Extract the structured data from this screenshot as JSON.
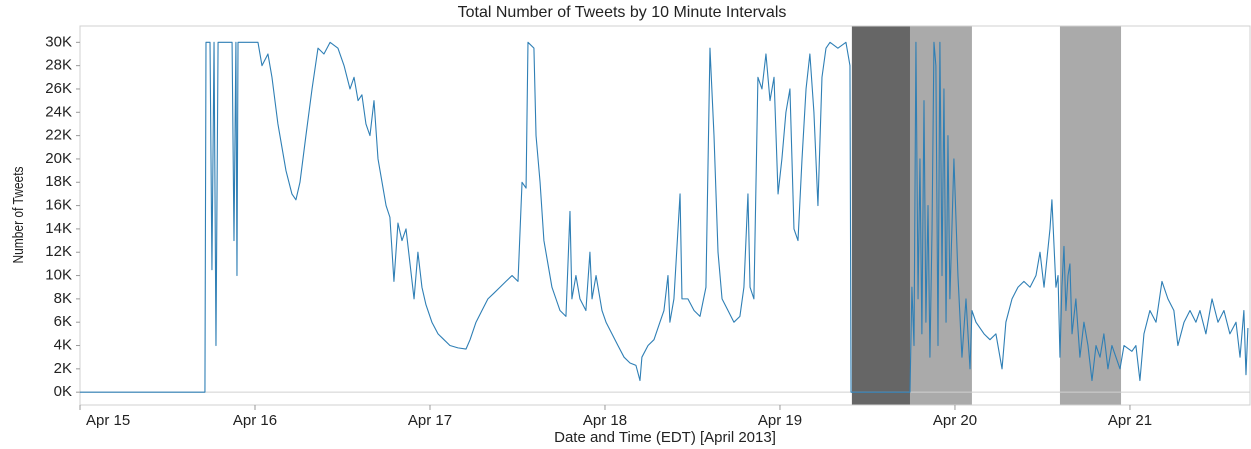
{
  "chart_data": {
    "type": "line",
    "title": "Total Number of Tweets by 10 Minute Intervals",
    "x_label": "Date and Time (EDT) [April 2013]",
    "y_label": "Number of Tweets",
    "color": "#2f7fb5",
    "grid": false,
    "xlim": [
      15,
      21.686
    ],
    "xticks": [
      {
        "value": 15,
        "label": "Apr 15"
      },
      {
        "value": 16,
        "label": "Apr 16"
      },
      {
        "value": 17,
        "label": "Apr 17"
      },
      {
        "value": 18,
        "label": "Apr 18"
      },
      {
        "value": 19,
        "label": "Apr 19"
      },
      {
        "value": 20,
        "label": "Apr 20"
      },
      {
        "value": 21,
        "label": "Apr 21"
      }
    ],
    "ylim": [
      -1100,
      31400
    ],
    "yticks": [
      {
        "value": 0,
        "label": "0K"
      },
      {
        "value": 2000,
        "label": "2K"
      },
      {
        "value": 4000,
        "label": "4K"
      },
      {
        "value": 6000,
        "label": "6K"
      },
      {
        "value": 8000,
        "label": "8K"
      },
      {
        "value": 10000,
        "label": "10K"
      },
      {
        "value": 12000,
        "label": "12K"
      },
      {
        "value": 14000,
        "label": "14K"
      },
      {
        "value": 16000,
        "label": "16K"
      },
      {
        "value": 18000,
        "label": "18K"
      },
      {
        "value": 20000,
        "label": "20K"
      },
      {
        "value": 22000,
        "label": "22K"
      },
      {
        "value": 24000,
        "label": "24K"
      },
      {
        "value": 26000,
        "label": "26K"
      },
      {
        "value": 28000,
        "label": "28K"
      },
      {
        "value": 30000,
        "label": "30K"
      }
    ],
    "shaded_regions": [
      {
        "start": 19.411,
        "end": 19.743,
        "color": "#666666"
      },
      {
        "start": 19.743,
        "end": 20.097,
        "color": "#aaaaaa"
      },
      {
        "start": 20.6,
        "end": 20.949,
        "color": "#aaaaaa"
      }
    ],
    "x": [
      15.0,
      15.714,
      15.72,
      15.743,
      15.754,
      15.766,
      15.777,
      15.789,
      15.869,
      15.88,
      15.891,
      15.897,
      15.903,
      16.017,
      16.04,
      16.074,
      16.097,
      16.131,
      16.154,
      16.177,
      16.211,
      16.234,
      16.257,
      16.291,
      16.326,
      16.36,
      16.394,
      16.429,
      16.474,
      16.509,
      16.543,
      16.566,
      16.589,
      16.611,
      16.634,
      16.657,
      16.68,
      16.703,
      16.726,
      16.749,
      16.771,
      16.794,
      16.817,
      16.84,
      16.863,
      16.886,
      16.909,
      16.931,
      16.954,
      16.977,
      17.011,
      17.046,
      17.08,
      17.114,
      17.16,
      17.206,
      17.229,
      17.263,
      17.297,
      17.331,
      17.366,
      17.4,
      17.434,
      17.469,
      17.503,
      17.526,
      17.549,
      17.56,
      17.594,
      17.606,
      17.629,
      17.651,
      17.674,
      17.697,
      17.72,
      17.743,
      17.777,
      17.8,
      17.811,
      17.834,
      17.857,
      17.891,
      17.914,
      17.926,
      17.949,
      17.983,
      18.006,
      18.04,
      18.074,
      18.109,
      18.143,
      18.177,
      18.2,
      18.211,
      18.246,
      18.28,
      18.314,
      18.337,
      18.36,
      18.371,
      18.394,
      18.429,
      18.44,
      18.474,
      18.509,
      18.543,
      18.577,
      18.6,
      18.623,
      18.646,
      18.669,
      18.703,
      18.737,
      18.771,
      18.794,
      18.817,
      18.829,
      18.851,
      18.874,
      18.897,
      18.92,
      18.943,
      18.966,
      18.989,
      19.011,
      19.034,
      19.057,
      19.08,
      19.103,
      19.126,
      19.149,
      19.171,
      19.194,
      19.217,
      19.24,
      19.263,
      19.286,
      19.331,
      19.377,
      19.4,
      19.406,
      19.743,
      19.754,
      19.766,
      19.777,
      19.789,
      19.8,
      19.811,
      19.823,
      19.834,
      19.846,
      19.857,
      19.869,
      19.88,
      19.891,
      19.903,
      19.914,
      19.926,
      19.937,
      19.949,
      19.96,
      19.971,
      19.994,
      20.017,
      20.04,
      20.063,
      20.086,
      20.097,
      20.12,
      20.166,
      20.2,
      20.234,
      20.269,
      20.291,
      20.326,
      20.36,
      20.394,
      20.429,
      20.463,
      20.486,
      20.509,
      20.543,
      20.554,
      20.577,
      20.589,
      20.6,
      20.611,
      20.623,
      20.634,
      20.646,
      20.657,
      20.669,
      20.691,
      20.714,
      20.737,
      20.76,
      20.783,
      20.806,
      20.829,
      20.851,
      20.874,
      20.897,
      20.92,
      20.943,
      20.966,
      21.011,
      21.034,
      21.057,
      21.08,
      21.114,
      21.149,
      21.183,
      21.217,
      21.251,
      21.274,
      21.309,
      21.343,
      21.377,
      21.4,
      21.434,
      21.469,
      21.503,
      21.537,
      21.571,
      21.606,
      21.629,
      21.651,
      21.663,
      21.674
    ],
    "values": [
      0,
      0,
      30000,
      30000,
      10500,
      30000,
      4000,
      30000,
      30000,
      13000,
      30000,
      10000,
      30000,
      30000,
      28000,
      29000,
      27000,
      23000,
      21000,
      19000,
      17000,
      16500,
      18000,
      22000,
      26000,
      29500,
      29000,
      30000,
      29500,
      28000,
      26000,
      27000,
      25000,
      25500,
      23000,
      22000,
      25000,
      20000,
      18000,
      16000,
      15000,
      9500,
      14500,
      13000,
      14000,
      11000,
      8000,
      12000,
      9000,
      7500,
      6000,
      5000,
      4500,
      4000,
      3800,
      3700,
      4500,
      6000,
      7000,
      8000,
      8500,
      9000,
      9500,
      10000,
      9500,
      18000,
      17500,
      30000,
      29500,
      22000,
      18000,
      13000,
      11000,
      9000,
      8000,
      7000,
      6500,
      15500,
      8000,
      10000,
      8000,
      7000,
      12000,
      8000,
      10000,
      7000,
      6000,
      5000,
      4000,
      3000,
      2500,
      2300,
      1000,
      3000,
      4000,
      4500,
      6000,
      7000,
      10000,
      6000,
      8000,
      17000,
      8000,
      8000,
      7000,
      6500,
      9000,
      29500,
      22000,
      12000,
      8000,
      7000,
      6000,
      6500,
      9000,
      17000,
      9000,
      8000,
      27000,
      26000,
      29000,
      25000,
      27000,
      17000,
      20000,
      24000,
      26000,
      14000,
      13000,
      20000,
      26000,
      29000,
      24000,
      16000,
      27000,
      29500,
      30000,
      29500,
      30000,
      28000,
      0,
      0,
      9000,
      4000,
      30000,
      8000,
      20000,
      5000,
      25000,
      6000,
      16000,
      3000,
      14000,
      30000,
      28000,
      4000,
      30000,
      10000,
      26000,
      6000,
      22000,
      8000,
      20000,
      10000,
      3000,
      8000,
      2000,
      7000,
      6000,
      5000,
      4500,
      5000,
      2000,
      6000,
      8000,
      9000,
      9500,
      9000,
      10000,
      12000,
      9000,
      14000,
      16500,
      9000,
      10000,
      3000,
      9000,
      12500,
      7000,
      10000,
      11000,
      5000,
      8000,
      3000,
      6000,
      4000,
      1000,
      4000,
      3000,
      5000,
      2000,
      4000,
      3000,
      2000,
      4000,
      3500,
      4000,
      1000,
      5000,
      7000,
      6000,
      9500,
      8000,
      7000,
      4000,
      6000,
      7000,
      6000,
      7000,
      5000,
      8000,
      6000,
      7000,
      5000,
      6000,
      3000,
      7000,
      1500,
      5500
    ]
  }
}
